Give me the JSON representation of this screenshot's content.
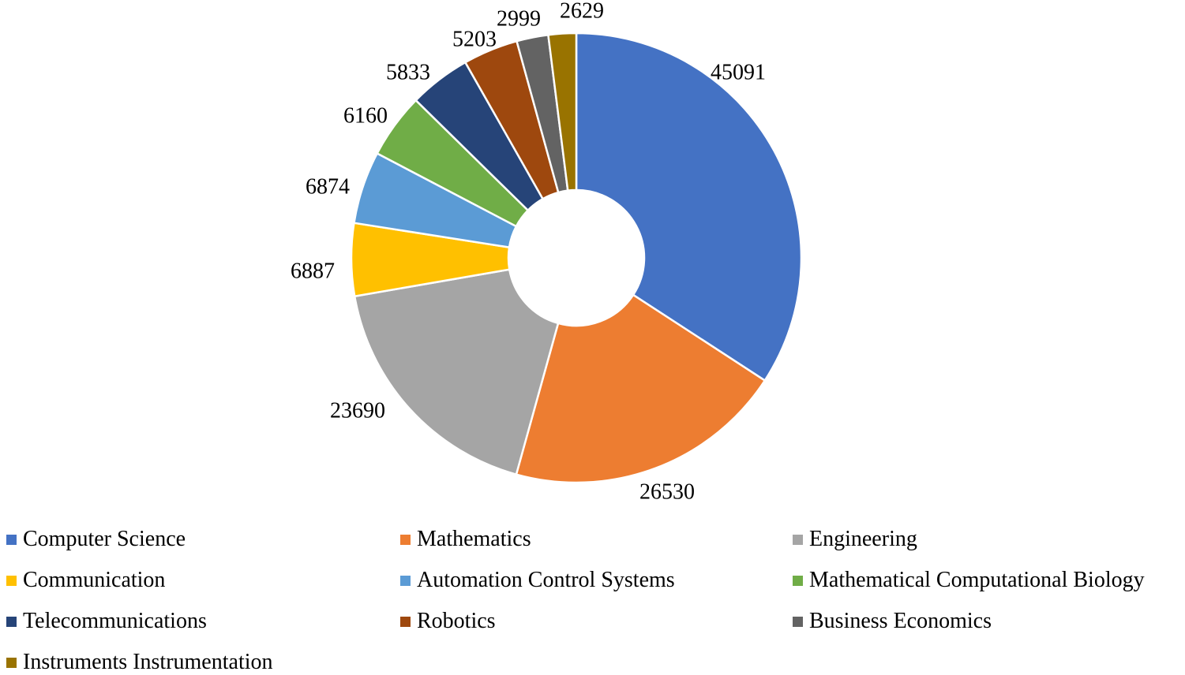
{
  "chart_data": {
    "type": "pie",
    "subtype": "donut",
    "title": "",
    "categories": [
      "Computer Science",
      "Mathematics",
      "Engineering",
      "Communication",
      "Automation Control Systems",
      "Mathematical Computational Biology",
      "Telecommunications",
      "Robotics",
      "Business Economics",
      "Instruments Instrumentation"
    ],
    "values": [
      45091,
      26530,
      23690,
      6887,
      6874,
      6160,
      5833,
      5203,
      2999,
      2629
    ],
    "colors": [
      "#4472C4",
      "#ED7D31",
      "#A5A5A5",
      "#FFC000",
      "#5B9BD5",
      "#70AD47",
      "#264478",
      "#9E480E",
      "#636363",
      "#997300"
    ],
    "data_labels_shown": "values-outside",
    "legend_position": "bottom",
    "donut_hole_ratio": 0.3,
    "start_angle_deg": 0,
    "direction": "clockwise",
    "grid": "off"
  }
}
